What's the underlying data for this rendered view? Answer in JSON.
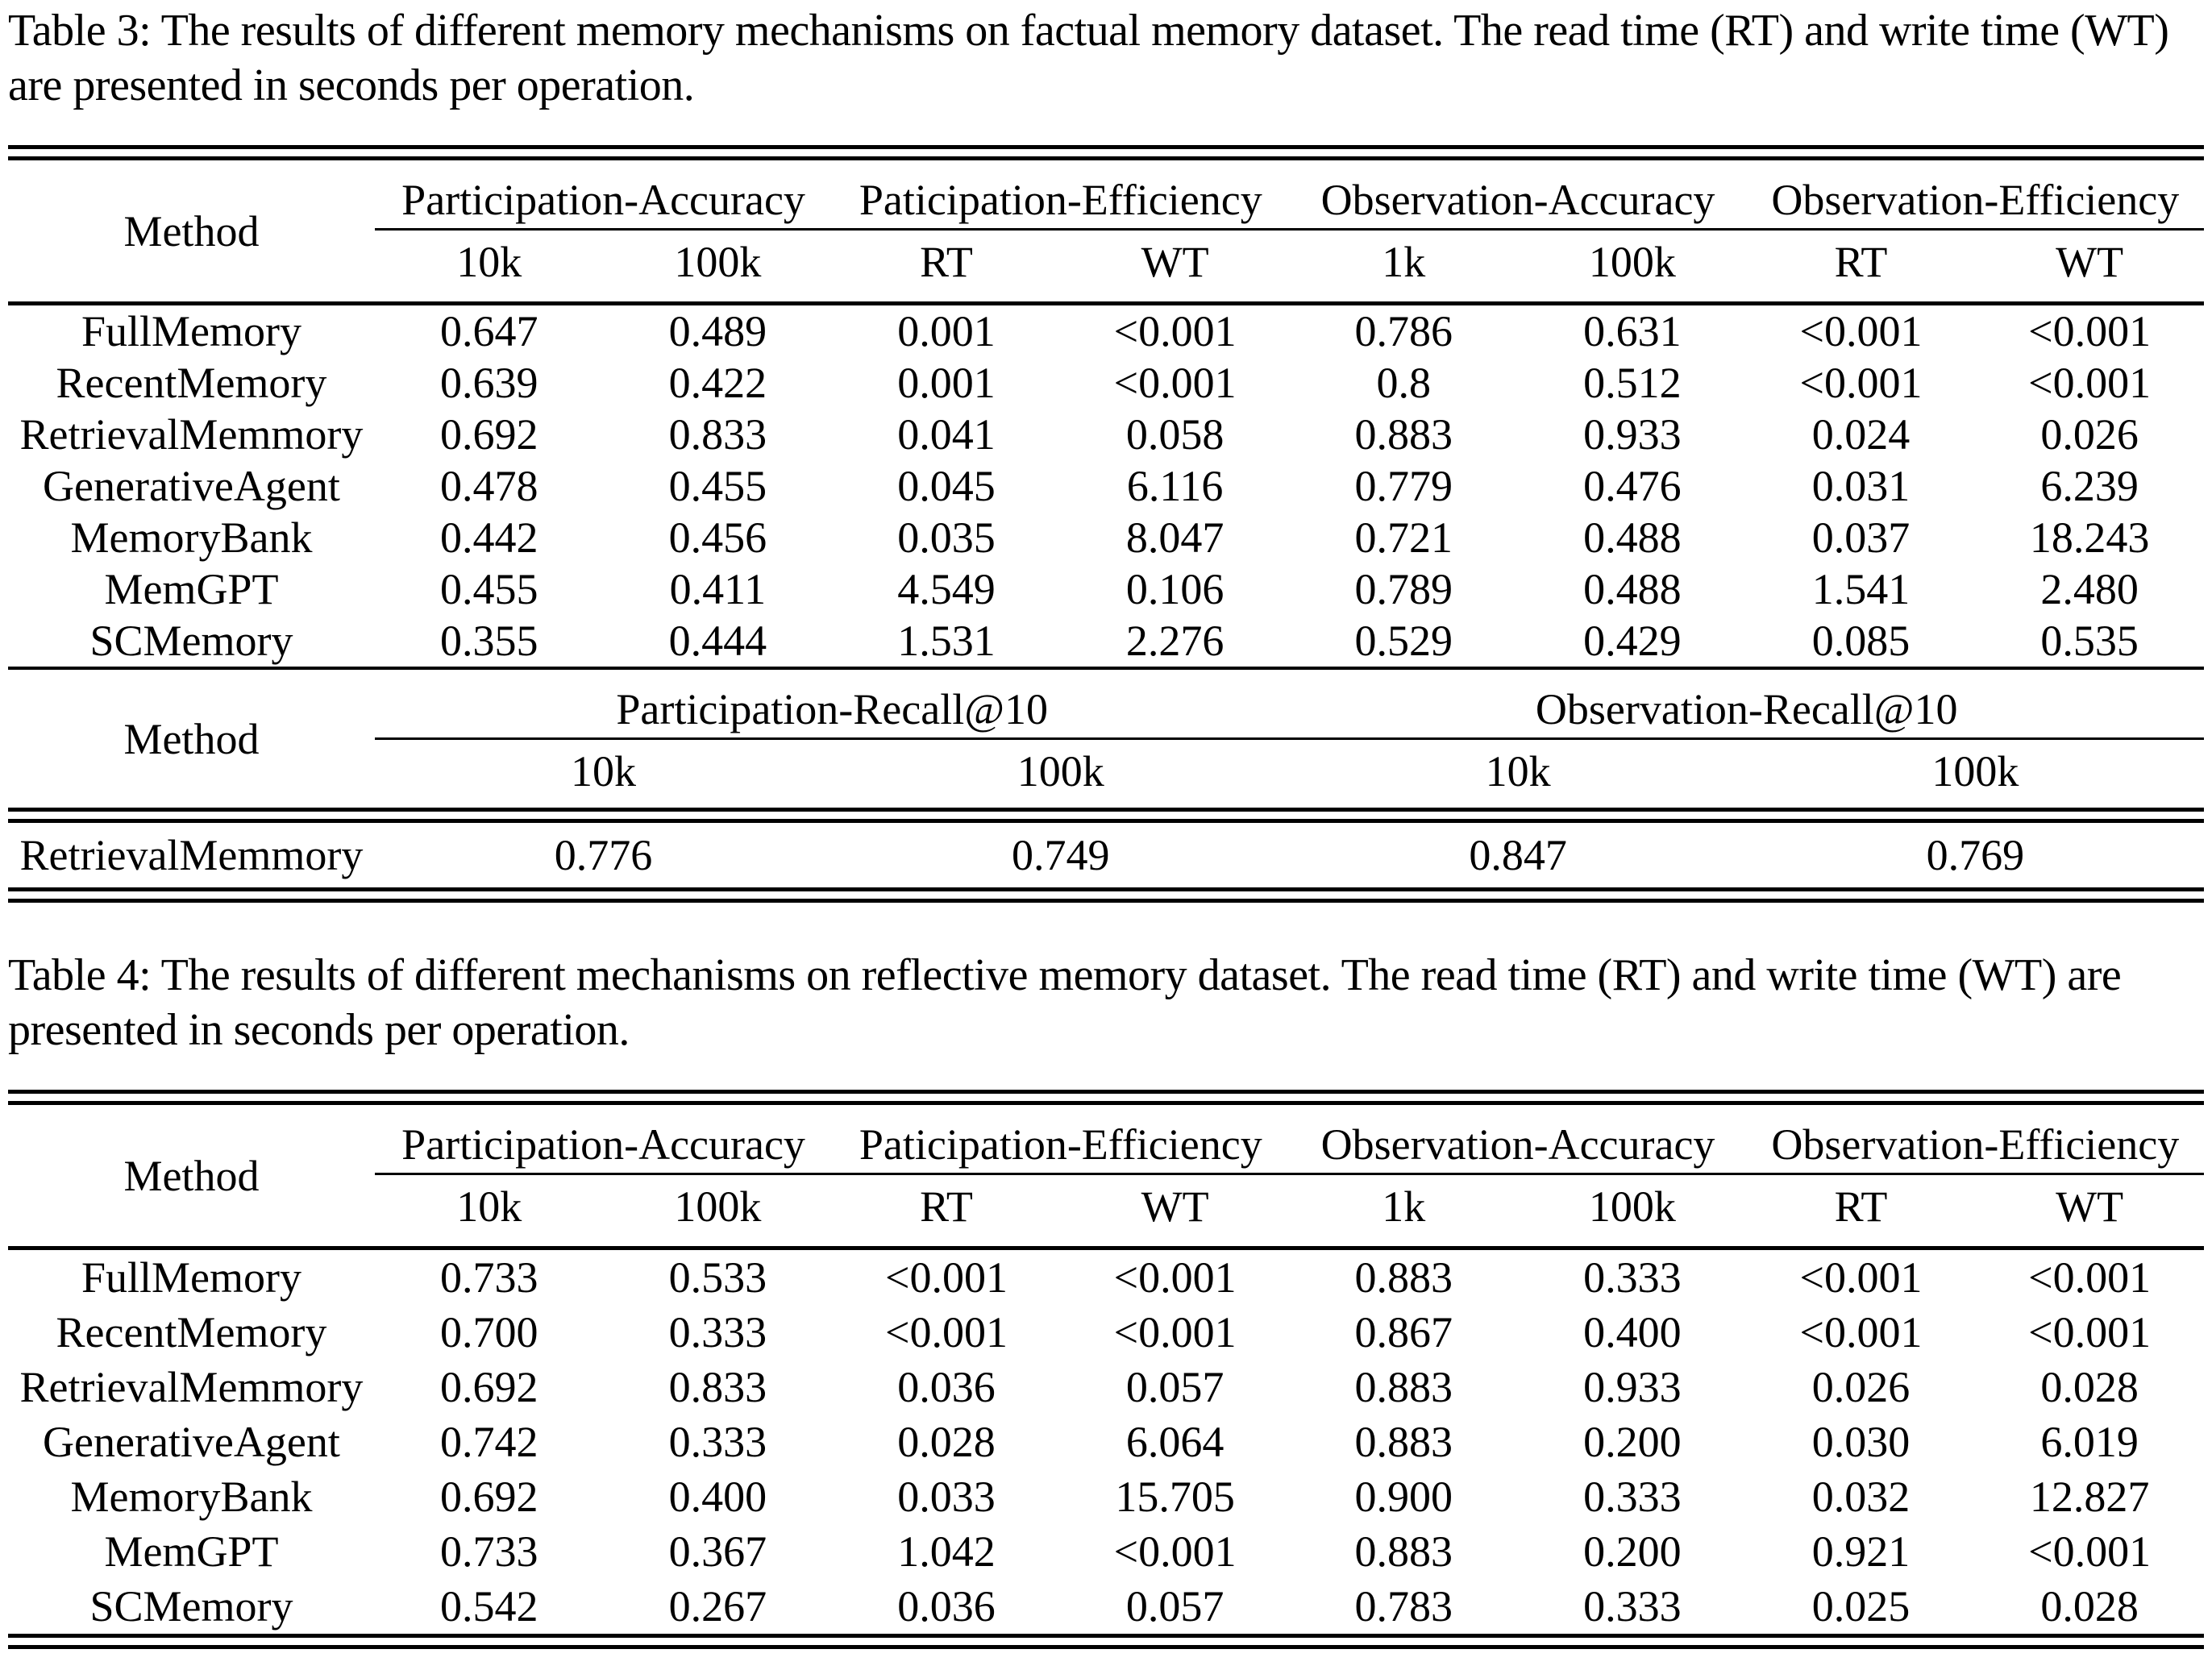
{
  "page": {
    "background": "#ffffff",
    "text_color": "#000000"
  },
  "table3": {
    "caption": "Table 3: The results of different memory mechanisms on factual memory dataset. The read time (RT) and write time (WT) are presented in seconds per operation.",
    "main": {
      "method_label": "Method",
      "group_headers": [
        "Participation-Accuracy",
        "Paticipation-Efficiency",
        "Observation-Accuracy",
        "Observation-Efficiency"
      ],
      "sub_headers": [
        "10k",
        "100k",
        "RT",
        "WT",
        "1k",
        "100k",
        "RT",
        "WT"
      ],
      "rows": [
        [
          "FullMemory",
          "0.647",
          "0.489",
          "0.001",
          "<0.001",
          "0.786",
          "0.631",
          "<0.001",
          "<0.001"
        ],
        [
          "RecentMemory",
          "0.639",
          "0.422",
          "0.001",
          "<0.001",
          "0.8",
          "0.512",
          "<0.001",
          "<0.001"
        ],
        [
          "RetrievalMemmory",
          "0.692",
          "0.833",
          "0.041",
          "0.058",
          "0.883",
          "0.933",
          "0.024",
          "0.026"
        ],
        [
          "GenerativeAgent",
          "0.478",
          "0.455",
          "0.045",
          "6.116",
          "0.779",
          "0.476",
          "0.031",
          "6.239"
        ],
        [
          "MemoryBank",
          "0.442",
          "0.456",
          "0.035",
          "8.047",
          "0.721",
          "0.488",
          "0.037",
          "18.243"
        ],
        [
          "MemGPT",
          "0.455",
          "0.411",
          "4.549",
          "0.106",
          "0.789",
          "0.488",
          "1.541",
          "2.480"
        ],
        [
          "SCMemory",
          "0.355",
          "0.444",
          "1.531",
          "2.276",
          "0.529",
          "0.429",
          "0.085",
          "0.535"
        ]
      ]
    },
    "recall": {
      "method_label": "Method",
      "group_headers": [
        "Participation-Recall@10",
        "Observation-Recall@10"
      ],
      "sub_headers": [
        "10k",
        "100k",
        "10k",
        "100k"
      ],
      "rows": [
        [
          "RetrievalMemmory",
          "0.776",
          "0.749",
          "0.847",
          "0.769"
        ]
      ]
    }
  },
  "table4": {
    "caption": "Table 4: The results of different mechanisms on reflective memory dataset. The read time (RT) and write time (WT) are presented in seconds per operation.",
    "main": {
      "method_label": "Method",
      "group_headers": [
        "Participation-Accuracy",
        "Paticipation-Efficiency",
        "Observation-Accuracy",
        "Observation-Efficiency"
      ],
      "sub_headers": [
        "10k",
        "100k",
        "RT",
        "WT",
        "1k",
        "100k",
        "RT",
        "WT"
      ],
      "rows": [
        [
          "FullMemory",
          "0.733",
          "0.533",
          "<0.001",
          "<0.001",
          "0.883",
          "0.333",
          "<0.001",
          "<0.001"
        ],
        [
          "RecentMemory",
          "0.700",
          "0.333",
          "<0.001",
          "<0.001",
          "0.867",
          "0.400",
          "<0.001",
          "<0.001"
        ],
        [
          "RetrievalMemmory",
          "0.692",
          "0.833",
          "0.036",
          "0.057",
          "0.883",
          "0.933",
          "0.026",
          "0.028"
        ],
        [
          "GenerativeAgent",
          "0.742",
          "0.333",
          "0.028",
          "6.064",
          "0.883",
          "0.200",
          "0.030",
          "6.019"
        ],
        [
          "MemoryBank",
          "0.692",
          "0.400",
          "0.033",
          "15.705",
          "0.900",
          "0.333",
          "0.032",
          "12.827"
        ],
        [
          "MemGPT",
          "0.733",
          "0.367",
          "1.042",
          "<0.001",
          "0.883",
          "0.200",
          "0.921",
          "<0.001"
        ],
        [
          "SCMemory",
          "0.542",
          "0.267",
          "0.036",
          "0.057",
          "0.783",
          "0.333",
          "0.025",
          "0.028"
        ]
      ]
    }
  }
}
